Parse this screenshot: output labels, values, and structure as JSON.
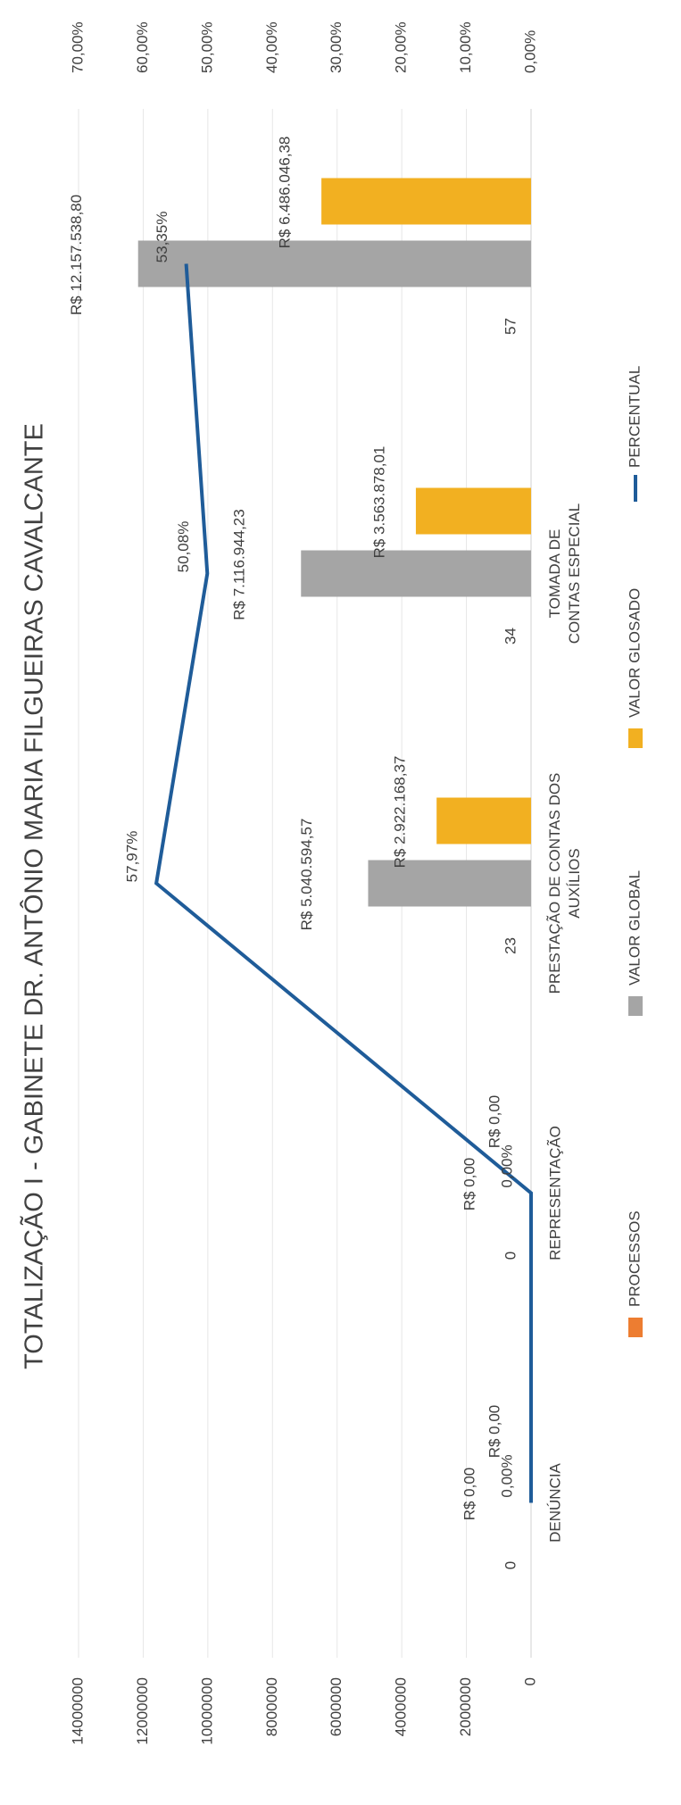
{
  "chart_data": {
    "type": "bar",
    "title": "TOTALIZAÇÃO I - GABINETE DR. ANTÔNIO MARIA FILGUEIRAS CAVALCANTE",
    "categories": [
      "DENÚNCIA",
      "REPRESENTAÇÃO",
      "PRESTAÇÃO DE CONTAS DOS AUXÍLIOS",
      "TOMADA DE CONTAS ESPECIAL",
      null
    ],
    "series": [
      {
        "name": "PROCESSOS",
        "type": "bar",
        "color": "#ed7d31",
        "values": [
          0,
          0,
          23,
          34,
          57
        ]
      },
      {
        "name": "VALOR GLOBAL",
        "type": "bar",
        "color": "#a5a5a5",
        "values": [
          0,
          0,
          5040594.57,
          7116944.23,
          12157538.8
        ],
        "value_labels": [
          "R$ 0,00",
          "R$ 0,00",
          "R$ 5.040.594,57",
          "R$ 7.116.944,23",
          "R$ 12.157.538,80"
        ]
      },
      {
        "name": "VALOR GLOSADO",
        "type": "bar",
        "color": "#f2b021",
        "values": [
          0,
          0,
          2922168.37,
          3563878.01,
          6486046.38
        ],
        "value_labels": [
          "R$ 0,00",
          "R$ 0,00",
          "R$ 2.922.168,37",
          "R$ 3.563.878,01",
          "R$ 6.486.046,38"
        ]
      },
      {
        "name": "PERCENTUAL",
        "type": "line",
        "axis": "y2",
        "color": "#1f5c99",
        "values": [
          0,
          0,
          57.97,
          50.08,
          53.35
        ],
        "value_labels": [
          "0,00%",
          "0,00%",
          "57,97%",
          "50,08%",
          "53,35%"
        ]
      }
    ],
    "ylim": [
      0,
      14000000
    ],
    "yticks": [
      0,
      2000000,
      4000000,
      6000000,
      8000000,
      10000000,
      12000000,
      14000000
    ],
    "y2lim": [
      0,
      70
    ],
    "y2ticks": [
      {
        "value": 0,
        "label": "0,00%"
      },
      {
        "value": 10,
        "label": "10,00%"
      },
      {
        "value": 20,
        "label": "20,00%"
      },
      {
        "value": 30,
        "label": "30,00%"
      },
      {
        "value": 40,
        "label": "40,00%"
      },
      {
        "value": 50,
        "label": "50,00%"
      },
      {
        "value": 60,
        "label": "60,00%"
      },
      {
        "value": 70,
        "label": "70,00%"
      }
    ],
    "grid": true,
    "legend": "bottom"
  }
}
